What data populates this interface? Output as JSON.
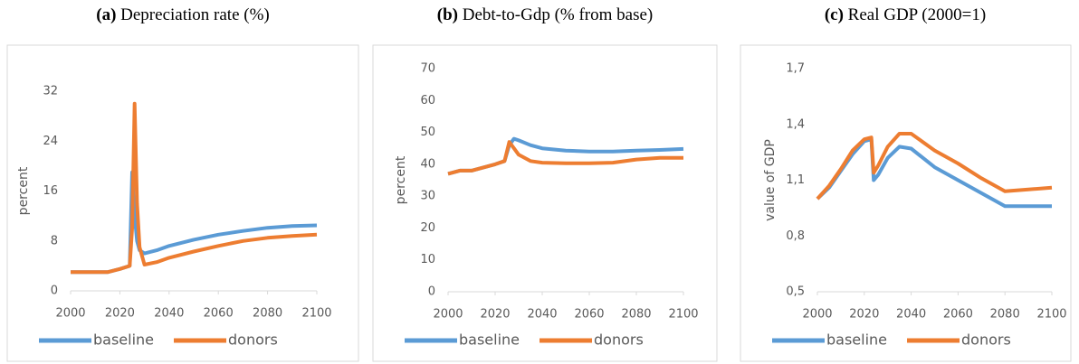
{
  "chart_data": [
    {
      "type": "line",
      "label": "(a)",
      "title": "Depreciation rate (%)",
      "ylabel": "percent",
      "x": [
        2000,
        2005,
        2010,
        2015,
        2020,
        2024,
        2025,
        2026,
        2027,
        2028,
        2030,
        2035,
        2040,
        2050,
        2060,
        2070,
        2080,
        2090,
        2100
      ],
      "xlim": [
        2000,
        2100
      ],
      "xticks": [
        2000,
        2020,
        2040,
        2060,
        2080,
        2100
      ],
      "ylim": [
        0,
        32
      ],
      "yticks": [
        0,
        8,
        16,
        24,
        32
      ],
      "series": [
        {
          "name": "baseline",
          "color": "#5b9bd5",
          "values": [
            3,
            3,
            3,
            3,
            3.5,
            4,
            19,
            12,
            8,
            6.5,
            6,
            6.5,
            7.2,
            8.2,
            9,
            9.6,
            10.1,
            10.4,
            10.5
          ]
        },
        {
          "name": "donors",
          "color": "#ed7d31",
          "values": [
            3,
            3,
            3,
            3,
            3.5,
            4,
            10,
            30,
            14,
            7,
            4.2,
            4.6,
            5.3,
            6.3,
            7.2,
            8,
            8.5,
            8.8,
            9
          ]
        }
      ]
    },
    {
      "type": "line",
      "label": "(b)",
      "title": "Debt-to-Gdp (% from base)",
      "ylabel": "percent",
      "x": [
        2000,
        2005,
        2010,
        2015,
        2020,
        2024,
        2026,
        2028,
        2030,
        2035,
        2040,
        2050,
        2060,
        2070,
        2080,
        2090,
        2100
      ],
      "xlim": [
        2000,
        2100
      ],
      "xticks": [
        2000,
        2020,
        2040,
        2060,
        2080,
        2100
      ],
      "ylim": [
        0,
        70
      ],
      "yticks": [
        0,
        10,
        20,
        30,
        40,
        50,
        60,
        70
      ],
      "series": [
        {
          "name": "baseline",
          "color": "#5b9bd5",
          "values": [
            37,
            38,
            38,
            39,
            40,
            41,
            46,
            48,
            47.5,
            46,
            45,
            44.3,
            44,
            44,
            44.3,
            44.5,
            44.8
          ]
        },
        {
          "name": "donors",
          "color": "#ed7d31",
          "values": [
            37,
            38,
            38,
            39,
            40,
            41,
            47,
            45,
            43,
            41,
            40.5,
            40.3,
            40.3,
            40.5,
            41.5,
            42,
            42
          ]
        }
      ]
    },
    {
      "type": "line",
      "label": "(c)",
      "title": "Real GDP (2000=1)",
      "ylabel": "value of GDP",
      "x": [
        2000,
        2005,
        2010,
        2015,
        2020,
        2023,
        2024,
        2026,
        2030,
        2035,
        2040,
        2050,
        2060,
        2070,
        2080,
        2090,
        2100
      ],
      "xlim": [
        2000,
        2100
      ],
      "xticks": [
        2000,
        2020,
        2040,
        2060,
        2080,
        2100
      ],
      "ylim": [
        0.5,
        1.7
      ],
      "yticks": [
        {
          "value": 0.5,
          "label": "0,5"
        },
        {
          "value": 0.8,
          "label": "0,8"
        },
        {
          "value": 1.1,
          "label": "1,1"
        },
        {
          "value": 1.4,
          "label": "1,4"
        },
        {
          "value": 1.7,
          "label": "1,7"
        }
      ],
      "series": [
        {
          "name": "baseline",
          "color": "#5b9bd5",
          "values": [
            1.0,
            1.06,
            1.15,
            1.24,
            1.31,
            1.32,
            1.1,
            1.13,
            1.22,
            1.28,
            1.27,
            1.17,
            1.1,
            1.03,
            0.96,
            0.96,
            0.96
          ]
        },
        {
          "name": "donors",
          "color": "#ed7d31",
          "values": [
            1.0,
            1.07,
            1.16,
            1.26,
            1.32,
            1.33,
            1.14,
            1.18,
            1.28,
            1.35,
            1.35,
            1.26,
            1.19,
            1.11,
            1.04,
            1.05,
            1.06
          ]
        }
      ]
    }
  ]
}
